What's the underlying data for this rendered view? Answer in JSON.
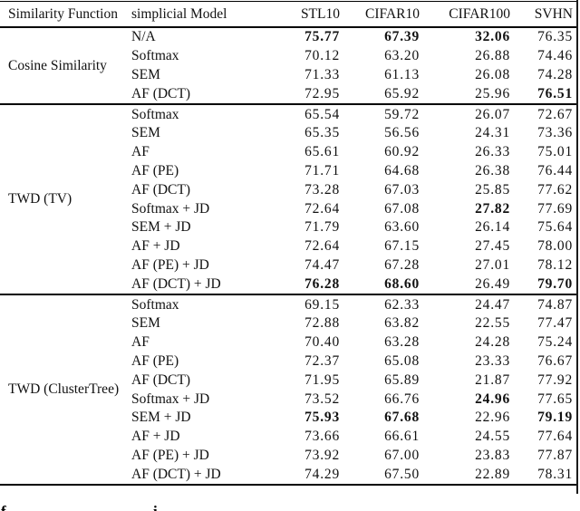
{
  "table": {
    "columns": [
      "Similarity Function",
      "simplicial Model",
      "STL10",
      "CIFAR10",
      "CIFAR100",
      "SVHN"
    ],
    "groups": [
      {
        "function": "Cosine Similarity",
        "rows": [
          {
            "model": "N/A",
            "values": [
              "75.77",
              "67.39",
              "32.06",
              "76.35"
            ],
            "bold": [
              true,
              true,
              true,
              false
            ]
          },
          {
            "model": "Softmax",
            "values": [
              "70.12",
              "63.20",
              "26.88",
              "74.46"
            ],
            "bold": [
              false,
              false,
              false,
              false
            ]
          },
          {
            "model": "SEM",
            "values": [
              "71.33",
              "61.13",
              "26.08",
              "74.28"
            ],
            "bold": [
              false,
              false,
              false,
              false
            ]
          },
          {
            "model": "AF (DCT)",
            "values": [
              "72.95",
              "65.92",
              "25.96",
              "76.51"
            ],
            "bold": [
              false,
              false,
              false,
              true
            ]
          }
        ]
      },
      {
        "function": "TWD (TV)",
        "rows": [
          {
            "model": "Softmax",
            "values": [
              "65.54",
              "59.72",
              "26.07",
              "72.67"
            ],
            "bold": [
              false,
              false,
              false,
              false
            ]
          },
          {
            "model": "SEM",
            "values": [
              "65.35",
              "56.56",
              "24.31",
              "73.36"
            ],
            "bold": [
              false,
              false,
              false,
              false
            ]
          },
          {
            "model": "AF",
            "values": [
              "65.61",
              "60.92",
              "26.33",
              "75.01"
            ],
            "bold": [
              false,
              false,
              false,
              false
            ]
          },
          {
            "model": "AF (PE)",
            "values": [
              "71.71",
              "64.68",
              "26.38",
              "76.44"
            ],
            "bold": [
              false,
              false,
              false,
              false
            ]
          },
          {
            "model": "AF (DCT)",
            "values": [
              "73.28",
              "67.03",
              "25.85",
              "77.62"
            ],
            "bold": [
              false,
              false,
              false,
              false
            ]
          },
          {
            "model": "Softmax + JD",
            "values": [
              "72.64",
              "67.08",
              "27.82",
              "77.69"
            ],
            "bold": [
              false,
              false,
              true,
              false
            ]
          },
          {
            "model": "SEM + JD",
            "values": [
              "71.79",
              "63.60",
              "26.14",
              "75.64"
            ],
            "bold": [
              false,
              false,
              false,
              false
            ]
          },
          {
            "model": "AF + JD",
            "values": [
              "72.64",
              "67.15",
              "27.45",
              "78.00"
            ],
            "bold": [
              false,
              false,
              false,
              false
            ]
          },
          {
            "model": "AF (PE) + JD",
            "values": [
              "74.47",
              "67.28",
              "27.01",
              "78.12"
            ],
            "bold": [
              false,
              false,
              false,
              false
            ]
          },
          {
            "model": "AF (DCT) + JD",
            "values": [
              "76.28",
              "68.60",
              "26.49",
              "79.70"
            ],
            "bold": [
              true,
              true,
              false,
              true
            ]
          }
        ]
      },
      {
        "function": "TWD (ClusterTree)",
        "rows": [
          {
            "model": "Softmax",
            "values": [
              "69.15",
              "62.33",
              "24.47",
              "74.87"
            ],
            "bold": [
              false,
              false,
              false,
              false
            ]
          },
          {
            "model": "SEM",
            "values": [
              "72.88",
              "63.82",
              "22.55",
              "77.47"
            ],
            "bold": [
              false,
              false,
              false,
              false
            ]
          },
          {
            "model": "AF",
            "values": [
              "70.40",
              "63.28",
              "24.28",
              "75.24"
            ],
            "bold": [
              false,
              false,
              false,
              false
            ]
          },
          {
            "model": "AF (PE)",
            "values": [
              "72.37",
              "65.08",
              "23.33",
              "76.67"
            ],
            "bold": [
              false,
              false,
              false,
              false
            ]
          },
          {
            "model": "AF (DCT)",
            "values": [
              "71.95",
              "65.89",
              "21.87",
              "77.92"
            ],
            "bold": [
              false,
              false,
              false,
              false
            ]
          },
          {
            "model": "Softmax + JD",
            "values": [
              "73.52",
              "66.76",
              "24.96",
              "77.65"
            ],
            "bold": [
              false,
              false,
              true,
              false
            ]
          },
          {
            "model": "SEM + JD",
            "values": [
              "75.93",
              "67.68",
              "22.96",
              "79.19"
            ],
            "bold": [
              true,
              true,
              false,
              true
            ]
          },
          {
            "model": "AF + JD",
            "values": [
              "73.66",
              "66.61",
              "24.55",
              "77.64"
            ],
            "bold": [
              false,
              false,
              false,
              false
            ]
          },
          {
            "model": "AF (PE) + JD",
            "values": [
              "73.92",
              "67.00",
              "23.83",
              "77.87"
            ],
            "bold": [
              false,
              false,
              false,
              false
            ]
          },
          {
            "model": "AF (DCT) + JD",
            "values": [
              "74.29",
              "67.50",
              "22.89",
              "78.31"
            ],
            "bold": [
              false,
              false,
              false,
              false
            ]
          }
        ]
      }
    ]
  },
  "caption_fragments": [
    "f",
    "i"
  ],
  "colors": {
    "background": "#ffffff",
    "text": "#111111",
    "rule": "#000000"
  }
}
